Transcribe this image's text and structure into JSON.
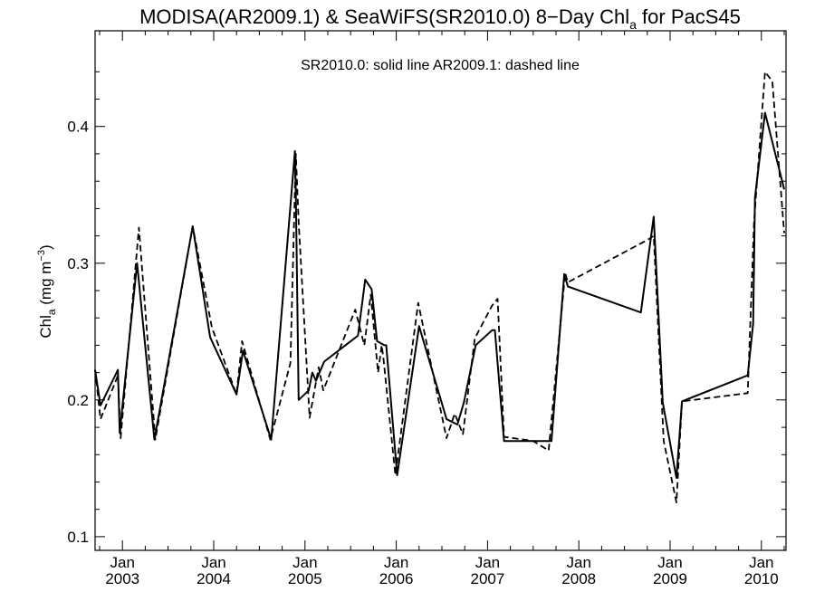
{
  "chart_data": {
    "type": "line",
    "title": {
      "pre": "MODISA(AR2009.1) & SeaWiFS(SR2010.0) 8−Day Chl",
      "sub": "a",
      "post": " for PacS45"
    },
    "annotation": "SR2010.0: solid line   AR2009.1: dashed line",
    "ylabel": {
      "pre": "Chl",
      "sub": "a",
      "mid": " (mg m",
      "sup": "−3",
      "post": ")"
    },
    "xlim": [
      2002.7,
      2010.27
    ],
    "ylim": [
      0.09,
      0.47
    ],
    "yticks": [
      {
        "value": 0.1,
        "label": "0.1"
      },
      {
        "value": 0.2,
        "label": "0.2"
      },
      {
        "value": 0.3,
        "label": "0.3"
      },
      {
        "value": 0.4,
        "label": "0.4"
      }
    ],
    "xticks": [
      {
        "value": 2003.0,
        "month": "Jan",
        "year": "2003"
      },
      {
        "value": 2004.0,
        "month": "Jan",
        "year": "2004"
      },
      {
        "value": 2005.0,
        "month": "Jan",
        "year": "2005"
      },
      {
        "value": 2006.0,
        "month": "Jan",
        "year": "2006"
      },
      {
        "value": 2007.0,
        "month": "Jan",
        "year": "2007"
      },
      {
        "value": 2008.0,
        "month": "Jan",
        "year": "2008"
      },
      {
        "value": 2009.0,
        "month": "Jan",
        "year": "2009"
      },
      {
        "value": 2010.0,
        "month": "Jan",
        "year": "2010"
      }
    ],
    "series": [
      {
        "style": "solid",
        "x": [
          2002.7,
          2002.76,
          2002.95,
          2002.97,
          2003.16,
          2003.35,
          2003.77,
          2003.96,
          2004.25,
          2004.32,
          2004.63,
          2004.89,
          2004.9,
          2004.93,
          2005.04,
          2005.08,
          2005.12,
          2005.21,
          2005.58,
          2005.66,
          2005.73,
          2005.79,
          2005.87,
          2005.89,
          2006.01,
          2006.25,
          2006.55,
          2006.67,
          2006.74,
          2006.87,
          2007.05,
          2007.08,
          2007.18,
          2007.7,
          2007.84,
          2007.88,
          2008.68,
          2008.82,
          2008.92,
          2009.07,
          2009.13,
          2009.85,
          2009.91,
          2009.93,
          2010.04,
          2010.25
        ],
        "y": [
          0.222,
          0.196,
          0.222,
          0.176,
          0.3,
          0.171,
          0.327,
          0.246,
          0.204,
          0.236,
          0.171,
          0.382,
          0.35,
          0.2,
          0.207,
          0.22,
          0.214,
          0.228,
          0.247,
          0.288,
          0.281,
          0.243,
          0.24,
          0.24,
          0.145,
          0.254,
          0.186,
          0.182,
          0.198,
          0.24,
          0.251,
          0.251,
          0.17,
          0.17,
          0.292,
          0.283,
          0.264,
          0.334,
          0.198,
          0.143,
          0.199,
          0.218,
          0.256,
          0.348,
          0.41,
          0.354
        ]
      },
      {
        "style": "dashed",
        "x": [
          2002.7,
          2002.76,
          2002.82,
          2002.95,
          2002.98,
          2003.18,
          2003.36,
          2003.77,
          2003.98,
          2004.25,
          2004.31,
          2004.62,
          2004.84,
          2004.9,
          2004.93,
          2005.05,
          2005.15,
          2005.2,
          2005.55,
          2005.65,
          2005.72,
          2005.8,
          2005.84,
          2005.86,
          2005.99,
          2006.24,
          2006.55,
          2006.64,
          2006.73,
          2006.86,
          2007.05,
          2007.11,
          2007.18,
          2007.5,
          2007.67,
          2007.85,
          2007.88,
          2008.75,
          2008.82,
          2008.93,
          2009.07,
          2009.13,
          2009.85,
          2009.92,
          2010.04,
          2010.12,
          2010.25
        ],
        "y": [
          0.222,
          0.186,
          0.196,
          0.218,
          0.172,
          0.326,
          0.171,
          0.327,
          0.253,
          0.204,
          0.243,
          0.171,
          0.227,
          0.38,
          0.33,
          0.187,
          0.224,
          0.207,
          0.266,
          0.24,
          0.277,
          0.22,
          0.24,
          0.23,
          0.145,
          0.271,
          0.172,
          0.19,
          0.175,
          0.245,
          0.269,
          0.274,
          0.173,
          0.17,
          0.163,
          0.293,
          0.286,
          0.317,
          0.32,
          0.17,
          0.125,
          0.199,
          0.205,
          0.33,
          0.44,
          0.433,
          0.322
        ]
      }
    ],
    "grid": false,
    "legend": "none"
  }
}
